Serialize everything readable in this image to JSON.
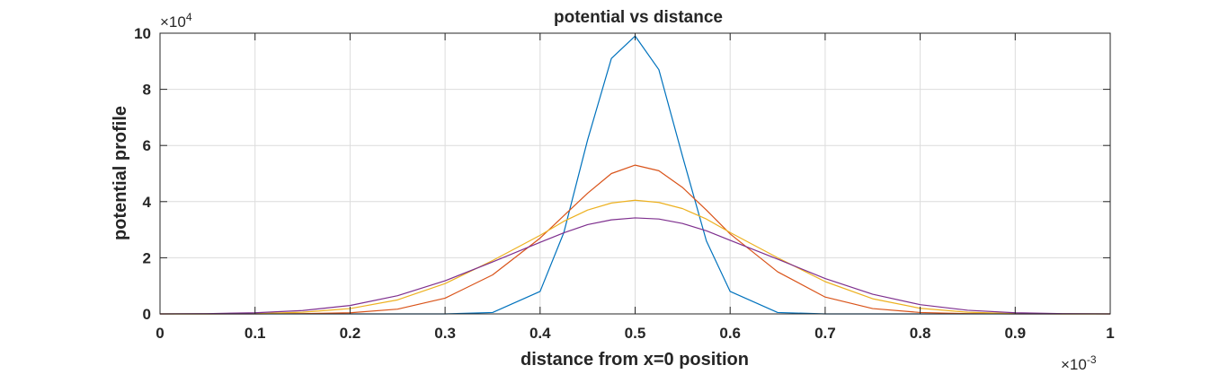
{
  "chart_data": {
    "type": "line",
    "title": "potential vs distance",
    "xlabel": "distance from x=0 position",
    "ylabel": "potential profile",
    "xlim": [
      0,
      0.001
    ],
    "ylim": [
      0,
      100000
    ],
    "x_exponent_label": "×10",
    "x_exponent": "-3",
    "y_exponent_label": "×10",
    "y_exponent": "4",
    "x_ticks": [
      "0",
      "0.1",
      "0.2",
      "0.3",
      "0.4",
      "0.5",
      "0.6",
      "0.7",
      "0.8",
      "0.9",
      "1"
    ],
    "x_tick_values": [
      0,
      0.0001,
      0.0002,
      0.0003,
      0.0004,
      0.0005,
      0.0006,
      0.0007,
      0.0008,
      0.0009,
      0.001
    ],
    "y_ticks": [
      "0",
      "2",
      "4",
      "6",
      "8",
      "10"
    ],
    "y_tick_values": [
      0,
      20000,
      40000,
      60000,
      80000,
      100000
    ],
    "grid": true,
    "x": [
      0,
      5e-05,
      0.0001,
      0.00015,
      0.0002,
      0.00025,
      0.0003,
      0.00035,
      0.0004,
      0.000425,
      0.00045,
      0.000475,
      0.0005,
      0.000525,
      0.00055,
      0.000575,
      0.0006,
      0.00065,
      0.0007,
      0.00075,
      0.0008,
      0.00085,
      0.0009,
      0.00095,
      0.001
    ],
    "series": [
      {
        "color": "#0072BD",
        "values": [
          0,
          0,
          0,
          0,
          0,
          0,
          0,
          500,
          8000,
          29000,
          62000,
          91000,
          99000,
          87000,
          56000,
          26000,
          8000,
          500,
          0,
          0,
          0,
          0,
          0,
          0,
          0
        ]
      },
      {
        "color": "#D95319",
        "values": [
          0,
          0,
          0,
          100,
          400,
          1700,
          5600,
          13900,
          27000,
          35000,
          43000,
          50000,
          53000,
          51000,
          45000,
          37000,
          28500,
          15000,
          6000,
          1900,
          500,
          100,
          0,
          0,
          0
        ]
      },
      {
        "color": "#EDB120",
        "values": [
          0,
          0,
          100,
          600,
          1900,
          5000,
          10800,
          19000,
          28000,
          33000,
          37000,
          39500,
          40500,
          39700,
          37500,
          33800,
          29000,
          20000,
          11500,
          5400,
          2000,
          600,
          100,
          0,
          0
        ]
      },
      {
        "color": "#7E2F8E",
        "values": [
          0,
          100,
          400,
          1200,
          3000,
          6500,
          11800,
          18500,
          25500,
          28900,
          31800,
          33500,
          34200,
          33800,
          32200,
          29600,
          26200,
          19500,
          12600,
          7000,
          3300,
          1300,
          400,
          100,
          0
        ]
      }
    ]
  }
}
